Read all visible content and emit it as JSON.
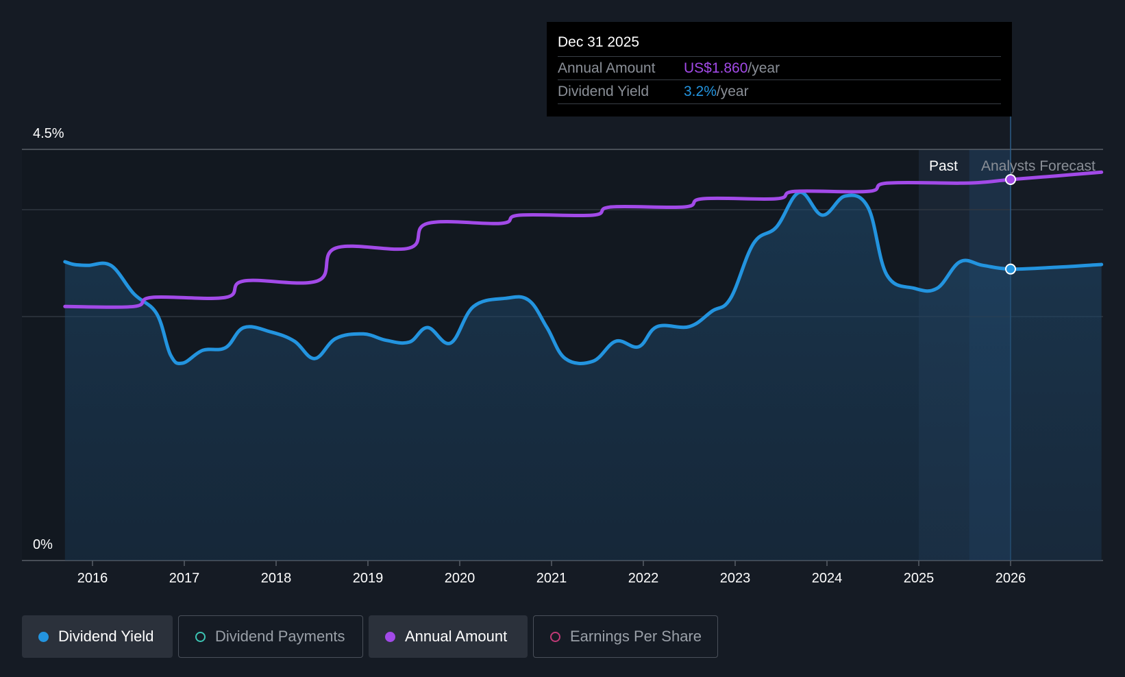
{
  "chart_data": {
    "type": "line",
    "y_axis": {
      "ticks": [
        "4.5%",
        "0%"
      ],
      "ylim": [
        0,
        4.5
      ]
    },
    "x_axis": {
      "ticks": [
        "2016",
        "2017",
        "2018",
        "2019",
        "2020",
        "2021",
        "2022",
        "2023",
        "2024",
        "2025",
        "2026"
      ],
      "xlim": [
        2015.3,
        2026.99
      ]
    },
    "regions": {
      "past_label": "Past",
      "forecast_label": "Analysts Forecast",
      "divider": 2026.0
    },
    "series": [
      {
        "name": "Dividend Yield",
        "color": "#2394df",
        "values": [
          [
            2015.7,
            3.27
          ],
          [
            2015.8,
            3.24
          ],
          [
            2015.95,
            3.23
          ],
          [
            2016.2,
            3.23
          ],
          [
            2016.45,
            2.92
          ],
          [
            2016.7,
            2.7
          ],
          [
            2016.85,
            2.25
          ],
          [
            2016.98,
            2.16
          ],
          [
            2017.2,
            2.3
          ],
          [
            2017.45,
            2.33
          ],
          [
            2017.65,
            2.55
          ],
          [
            2017.95,
            2.5
          ],
          [
            2018.2,
            2.4
          ],
          [
            2018.42,
            2.21
          ],
          [
            2018.65,
            2.43
          ],
          [
            2018.95,
            2.48
          ],
          [
            2019.2,
            2.41
          ],
          [
            2019.45,
            2.39
          ],
          [
            2019.65,
            2.55
          ],
          [
            2019.9,
            2.38
          ],
          [
            2020.15,
            2.78
          ],
          [
            2020.5,
            2.87
          ],
          [
            2020.75,
            2.85
          ],
          [
            2020.95,
            2.55
          ],
          [
            2021.15,
            2.21
          ],
          [
            2021.45,
            2.18
          ],
          [
            2021.7,
            2.4
          ],
          [
            2021.95,
            2.34
          ],
          [
            2022.15,
            2.56
          ],
          [
            2022.5,
            2.56
          ],
          [
            2022.75,
            2.73
          ],
          [
            2022.95,
            2.87
          ],
          [
            2023.2,
            3.47
          ],
          [
            2023.45,
            3.65
          ],
          [
            2023.7,
            4.03
          ],
          [
            2023.95,
            3.78
          ],
          [
            2024.2,
            3.99
          ],
          [
            2024.45,
            3.86
          ],
          [
            2024.65,
            3.13
          ],
          [
            2024.95,
            2.98
          ],
          [
            2025.2,
            2.98
          ],
          [
            2025.45,
            3.27
          ],
          [
            2025.7,
            3.23
          ],
          [
            2026.0,
            3.19
          ],
          [
            2026.5,
            3.21
          ],
          [
            2026.99,
            3.24
          ]
        ]
      },
      {
        "name": "Annual Amount",
        "color": "#a24ae8",
        "values": [
          [
            2015.7,
            2.78
          ],
          [
            2016.45,
            2.78
          ],
          [
            2016.65,
            2.88
          ],
          [
            2017.45,
            2.88
          ],
          [
            2017.65,
            3.06
          ],
          [
            2018.45,
            3.06
          ],
          [
            2018.65,
            3.42
          ],
          [
            2019.45,
            3.42
          ],
          [
            2019.65,
            3.69
          ],
          [
            2020.45,
            3.69
          ],
          [
            2020.65,
            3.78
          ],
          [
            2021.45,
            3.78
          ],
          [
            2021.65,
            3.87
          ],
          [
            2022.45,
            3.87
          ],
          [
            2022.65,
            3.96
          ],
          [
            2023.45,
            3.96
          ],
          [
            2023.65,
            4.04
          ],
          [
            2024.45,
            4.04
          ],
          [
            2024.65,
            4.13
          ],
          [
            2025.45,
            4.13
          ],
          [
            2025.7,
            4.14
          ],
          [
            2026.0,
            4.17
          ],
          [
            2026.5,
            4.21
          ],
          [
            2026.99,
            4.25
          ]
        ]
      }
    ],
    "tooltip": {
      "date": "Dec 31 2025",
      "rows": [
        {
          "label": "Annual Amount",
          "value": "US$1.860",
          "unit": "/year",
          "color": "#a24ae8"
        },
        {
          "label": "Dividend Yield",
          "value": "3.2%",
          "unit": "/year",
          "color": "#2394df"
        }
      ]
    },
    "legend": [
      {
        "label": "Dividend Yield",
        "color": "#2394df",
        "filled": true,
        "active": true
      },
      {
        "label": "Dividend Payments",
        "color": "#3cc5b4",
        "filled": false,
        "active": false
      },
      {
        "label": "Annual Amount",
        "color": "#a24ae8",
        "filled": true,
        "active": true
      },
      {
        "label": "Earnings Per Share",
        "color": "#c13a77",
        "filled": false,
        "active": false
      }
    ]
  }
}
